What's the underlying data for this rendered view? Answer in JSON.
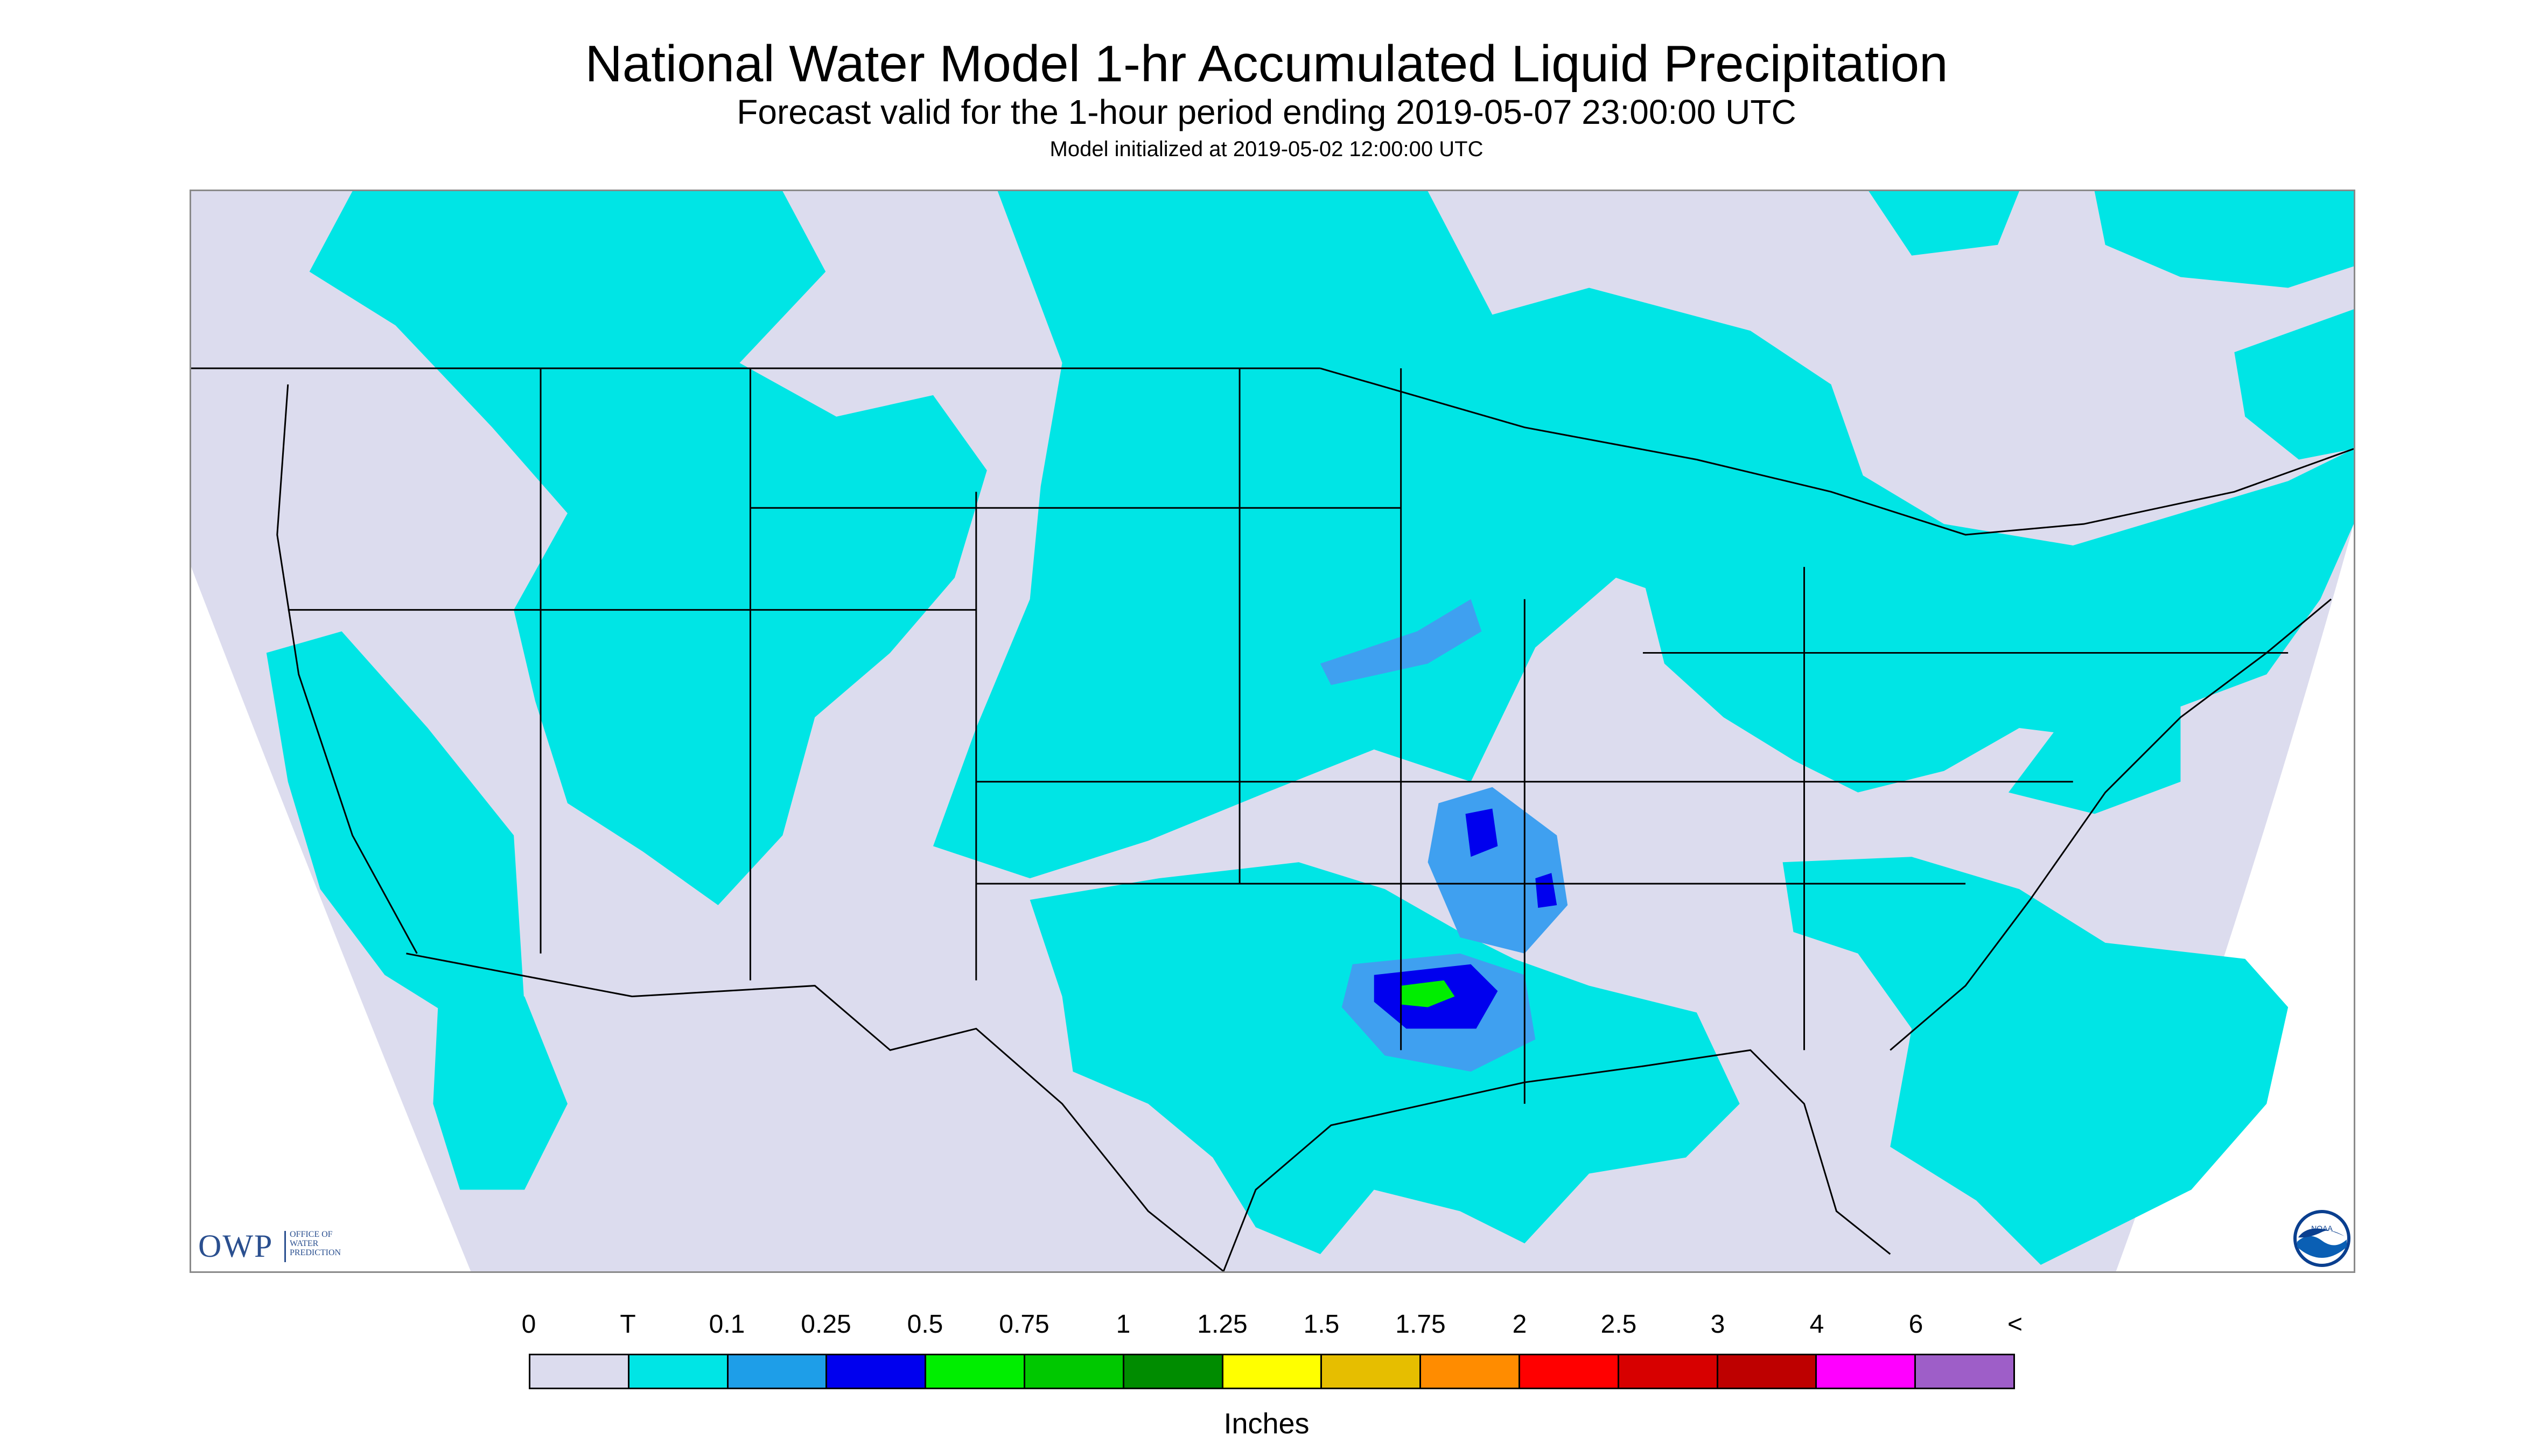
{
  "header": {
    "title": "National Water Model 1-hr Accumulated Liquid Precipitation",
    "subtitle": "Forecast valid for the 1-hour period ending 2019-05-07 23:00:00 UTC",
    "init": "Model initialized at 2019-05-02 12:00:00 UTC"
  },
  "logos": {
    "owp_abbr": "OWP",
    "owp_text": "OFFICE OF\nWATER\nPREDICTION",
    "noaa_text": "NOAA"
  },
  "colors": {
    "background": "#dcdcee",
    "no_data": "#ffffff",
    "trace": "#00e5e5",
    "light_blue": "#3fa0f0",
    "blue": "#0000ee",
    "green": "#00ee00",
    "borders": "#000000"
  },
  "legend": {
    "labels": [
      "0",
      "T",
      "0.1",
      "0.25",
      "0.5",
      "0.75",
      "1",
      "1.25",
      "1.5",
      "1.75",
      "2",
      "2.5",
      "3",
      "4",
      "6",
      "<"
    ],
    "colors": [
      "#dcdcee",
      "#00e5e5",
      "#1e9ee8",
      "#0000ee",
      "#00ee00",
      "#00c800",
      "#008c00",
      "#ffff00",
      "#e6be00",
      "#ff8c00",
      "#ff0000",
      "#d70000",
      "#be0000",
      "#ff00ff",
      "#9e5ec8"
    ],
    "units": "Inches"
  }
}
